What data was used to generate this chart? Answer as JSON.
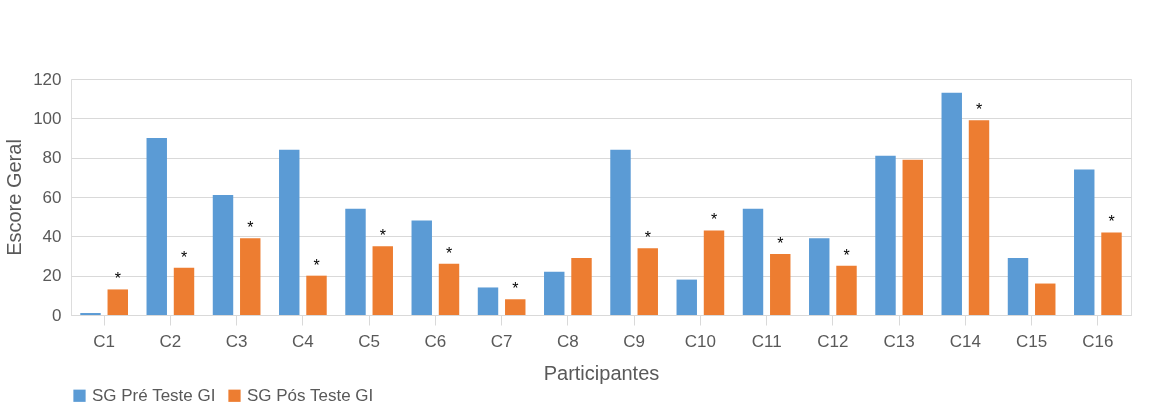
{
  "chart_data": {
    "type": "bar",
    "xlabel": "Participantes",
    "ylabel": "Escore Geral",
    "categories": [
      "C1",
      "C2",
      "C3",
      "C4",
      "C5",
      "C6",
      "C7",
      "C8",
      "C9",
      "C10",
      "C11",
      "C12",
      "C13",
      "C14",
      "C15",
      "C16"
    ],
    "series": [
      {
        "name": "SG Pré Teste GI",
        "color": "#5b9bd5",
        "values": [
          1,
          90,
          61,
          84,
          54,
          48,
          14,
          22,
          84,
          18,
          54,
          39,
          81,
          113,
          29,
          74
        ]
      },
      {
        "name": "SG Pós Teste GI",
        "color": "#ed7d31",
        "values": [
          13,
          24,
          39,
          20,
          35,
          26,
          8,
          29,
          34,
          43,
          31,
          25,
          79,
          99,
          16,
          42
        ]
      }
    ],
    "ylim": [
      0,
      120
    ],
    "yticks": [
      0,
      20,
      40,
      60,
      80,
      100,
      120
    ],
    "grid": "y",
    "legend": "bottom",
    "annotations": [
      {
        "text": "*",
        "x": "C1",
        "y": 13
      },
      {
        "text": "*",
        "x": "C2",
        "y": 24
      },
      {
        "text": "*",
        "x": "C3",
        "y": 39
      },
      {
        "text": "*",
        "x": "C4",
        "y": 20
      },
      {
        "text": "*",
        "x": "C5",
        "y": 35
      },
      {
        "text": "*",
        "x": "C6",
        "y": 26
      },
      {
        "text": "*",
        "x": "C7",
        "y": 8
      },
      {
        "text": "*",
        "x": "C9",
        "y": 34
      },
      {
        "text": "*",
        "x": "C10",
        "y": 43
      },
      {
        "text": "*",
        "x": "C11",
        "y": 31
      },
      {
        "text": "*",
        "x": "C12",
        "y": 25
      },
      {
        "text": "*",
        "x": "C14",
        "y": 99
      },
      {
        "text": "*",
        "x": "C16",
        "y": 42
      }
    ]
  }
}
